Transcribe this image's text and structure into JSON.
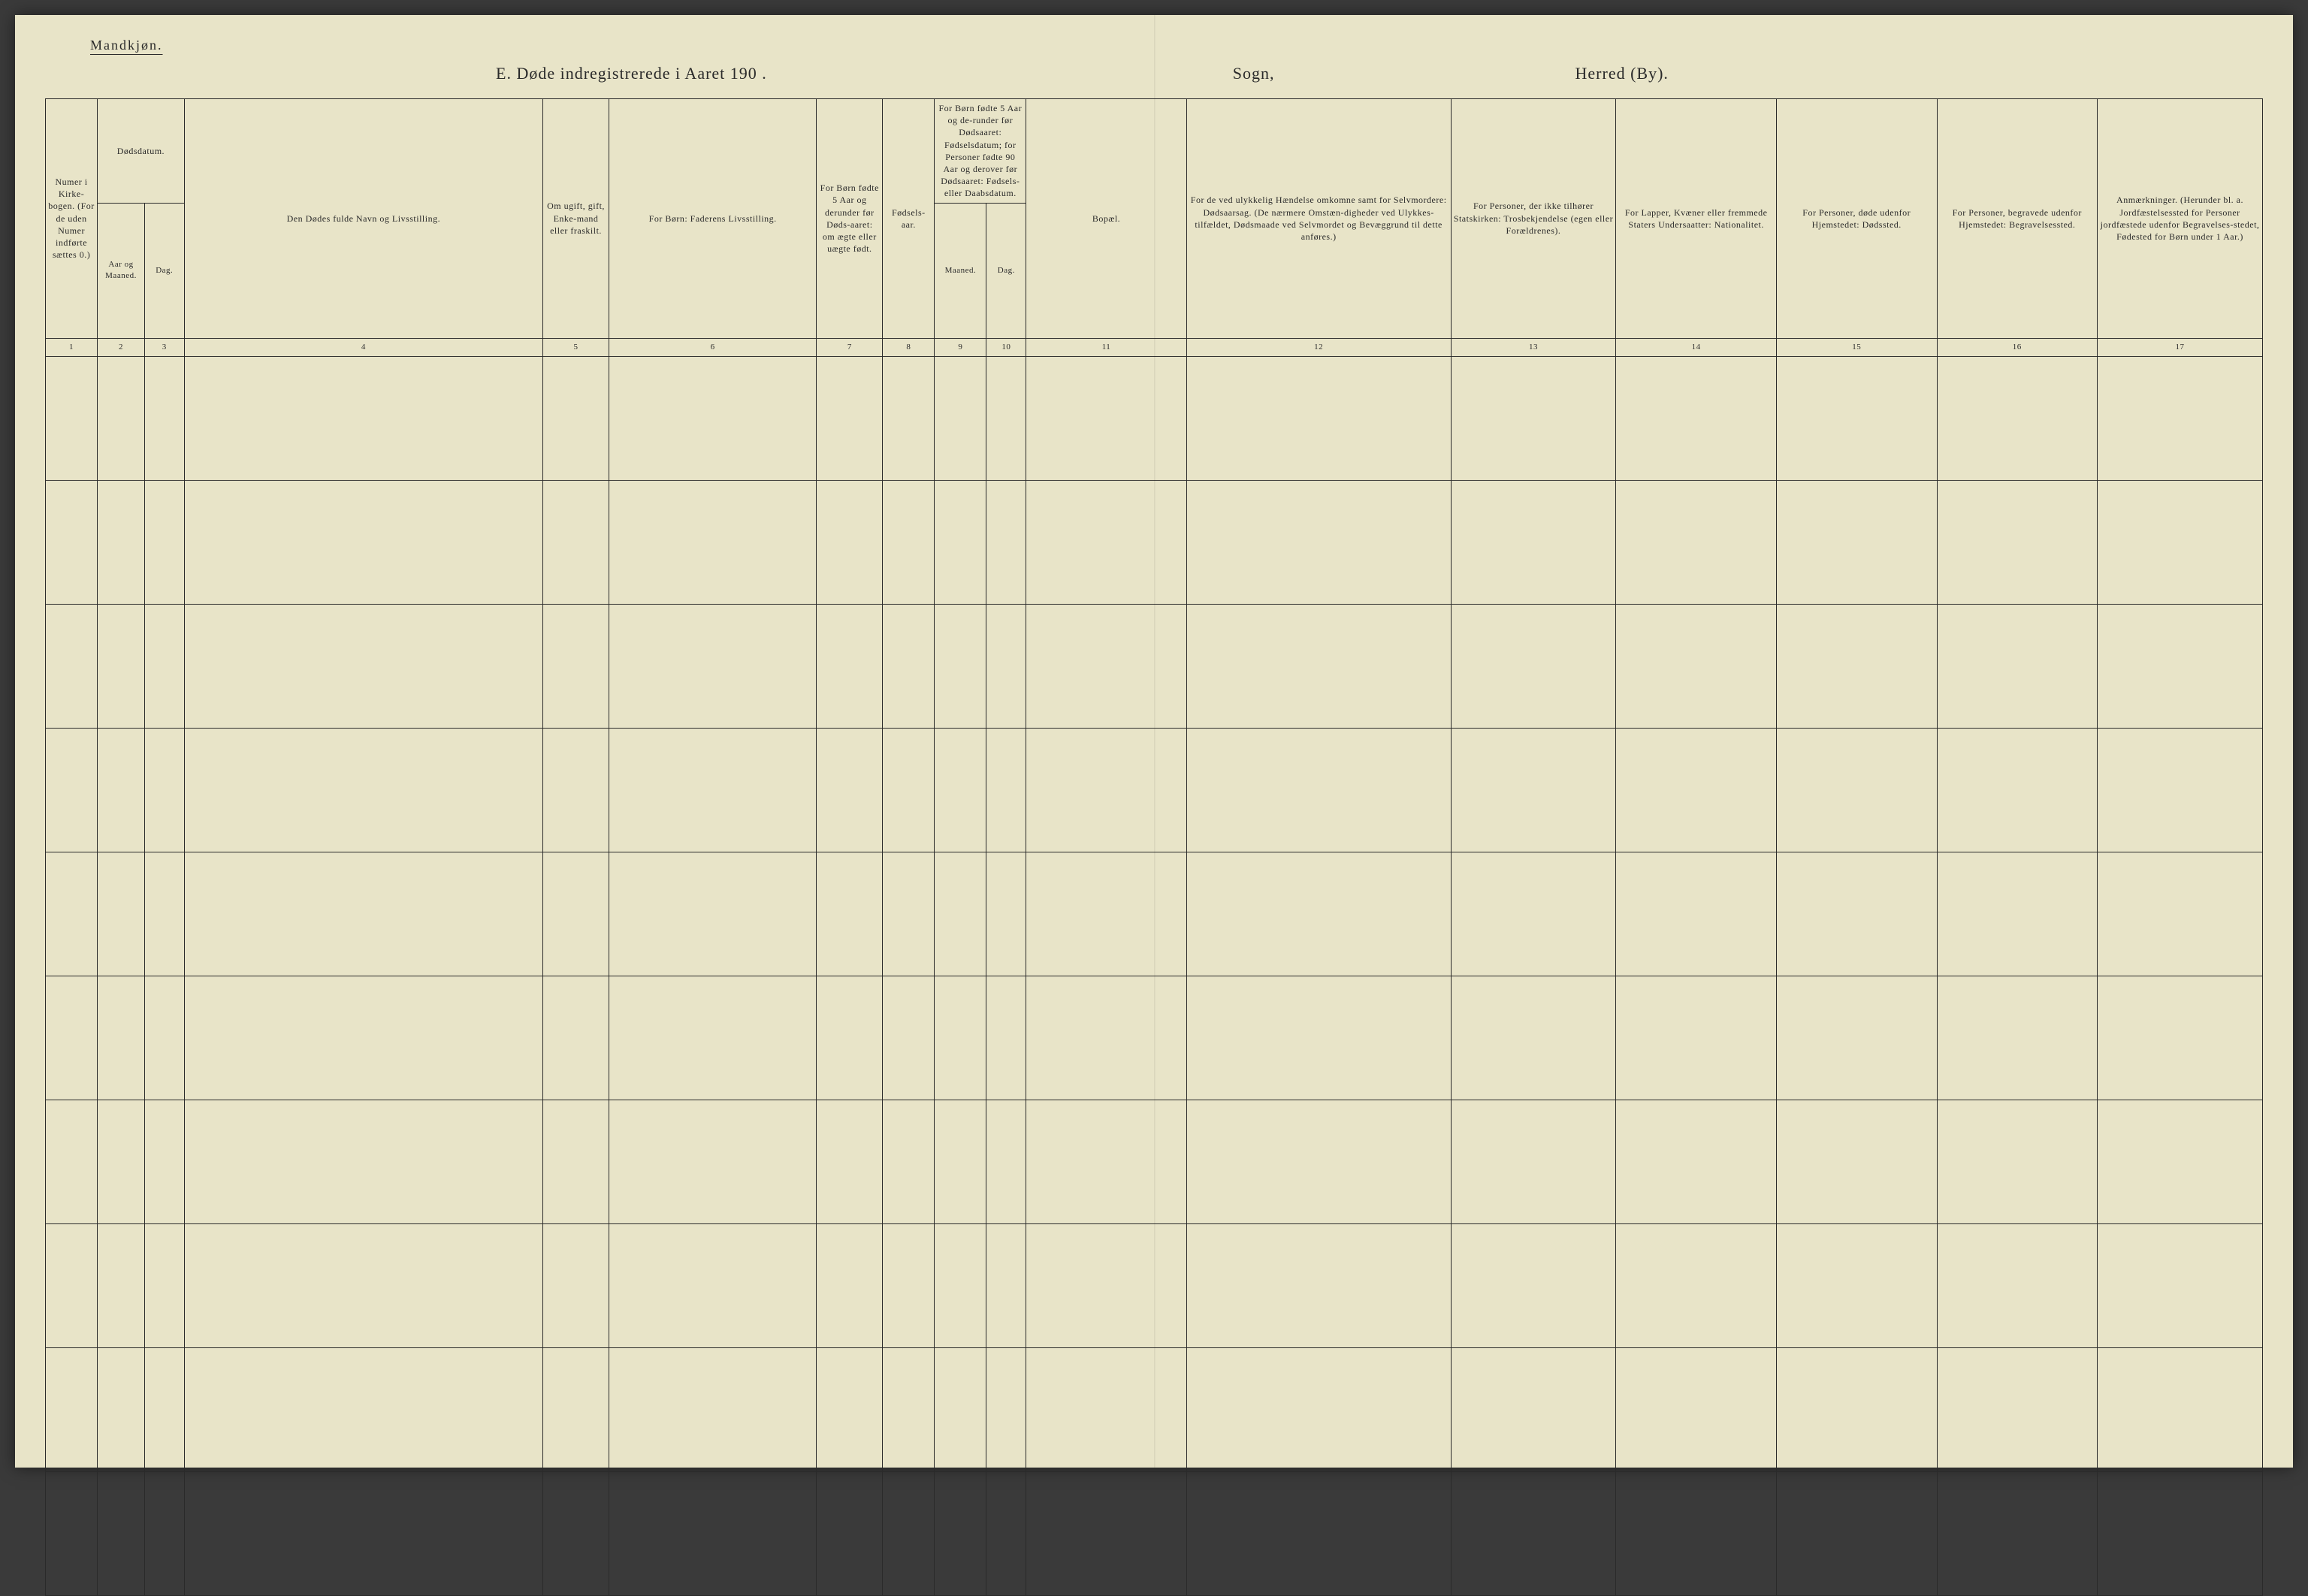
{
  "header": {
    "gender_label": "Mandkjøn.",
    "title": "E.  Døde indregistrerede i Aaret 190  .",
    "sogn": "Sogn,",
    "herred": "Herred (By)."
  },
  "table": {
    "headers": {
      "col1": "Numer i Kirke-bogen. (For de uden Numer indførte sættes 0.)",
      "col2_3_top": "Dødsdatum.",
      "col2": "Aar og Maaned.",
      "col3": "Dag.",
      "col4": "Den Dødes fulde Navn og Livsstilling.",
      "col5": "Om ugift, gift, Enke-mand eller fraskilt.",
      "col6": "For Børn: Faderens Livsstilling.",
      "col7": "For Børn fødte 5 Aar og derunder før Døds-aaret: om ægte eller uægte født.",
      "col8": "Fødsels-aar.",
      "col9_10_top": "For Børn fødte 5 Aar og de-runder før Dødsaaret: Fødselsdatum; for Personer fødte 90 Aar og derover før Dødsaaret: Fødsels- eller Daabsdatum.",
      "col9": "Maaned.",
      "col10": "Dag.",
      "col11": "Bopæl.",
      "col12": "For de ved ulykkelig Hændelse omkomne samt for Selvmordere: Dødsaarsag. (De nærmere Omstæn-digheder ved Ulykkes-tilfældet, Dødsmaade ved Selvmordet og Bevæggrund til dette anføres.)",
      "col13": "For Personer, der ikke tilhører Statskirken: Trosbekjendelse (egen eller Forældrenes).",
      "col14": "For Lapper, Kvæner eller fremmede Staters Undersaatter: Nationalitet.",
      "col15": "For Personer, døde udenfor Hjemstedet: Dødssted.",
      "col16": "For Personer, begravede udenfor Hjemstedet: Begravelsessted.",
      "col17": "Anmærkninger. (Herunder bl. a. Jordfæstelsessted for Personer jordfæstede udenfor Begravelses-stedet, Fødested for Børn under 1 Aar.)"
    },
    "column_numbers": [
      "1",
      "2",
      "3",
      "4",
      "5",
      "6",
      "7",
      "8",
      "9",
      "10",
      "11",
      "12",
      "13",
      "14",
      "15",
      "16",
      "17"
    ],
    "row_count": 10
  },
  "style": {
    "page_bg": "#e8e4c8",
    "border_color": "#2a2a2a",
    "text_color": "#2a2a2a",
    "outer_bg": "#3a3a3a",
    "header_fontsize": 12,
    "number_row_fontsize": 11,
    "body_row_height": 165
  }
}
